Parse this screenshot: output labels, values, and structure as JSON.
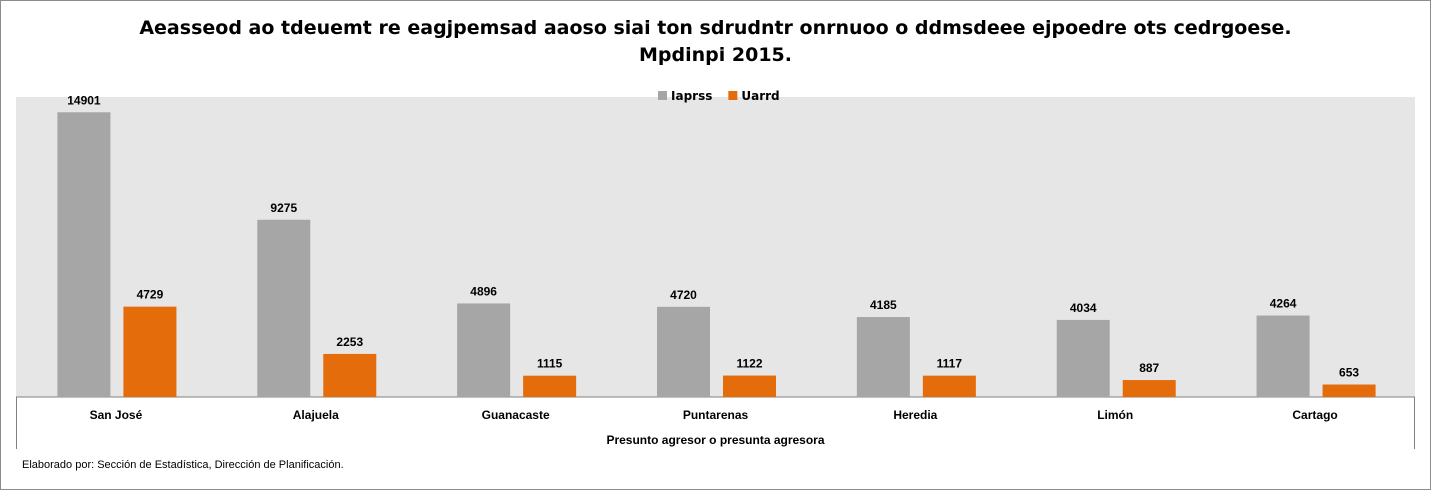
{
  "chart_data": {
    "type": "bar",
    "title": "Aeasseod ao tdeuemt re eagjpemsad aaoso siai ton sdrudntr onrnuoo o ddmsdeee ejpoedre ots cedrgoese.",
    "subtitle": "Mpdinpi 2015.",
    "xlabel": "Presunto agresor o presunta agresora",
    "ylabel": "",
    "categories": [
      "San José",
      "Alajuela",
      "Guanacaste",
      "Puntarenas",
      "Heredia",
      "Limón",
      "Cartago"
    ],
    "series": [
      {
        "name": "Iaprss",
        "color": "#a6a6a6",
        "values": [
          14901,
          9275,
          4896,
          4720,
          4185,
          4034,
          4264
        ]
      },
      {
        "name": "Uarrd",
        "color": "#e46c0a",
        "values": [
          4729,
          2253,
          1115,
          1122,
          1117,
          887,
          653
        ]
      }
    ],
    "ylim": [
      0,
      15700
    ],
    "legend_position": "top-center",
    "grid": false,
    "plot_background": "#e6e6e6"
  },
  "footer": {
    "credit": "Elaborado por: Sección de Estadística, Dirección de Planificación."
  }
}
